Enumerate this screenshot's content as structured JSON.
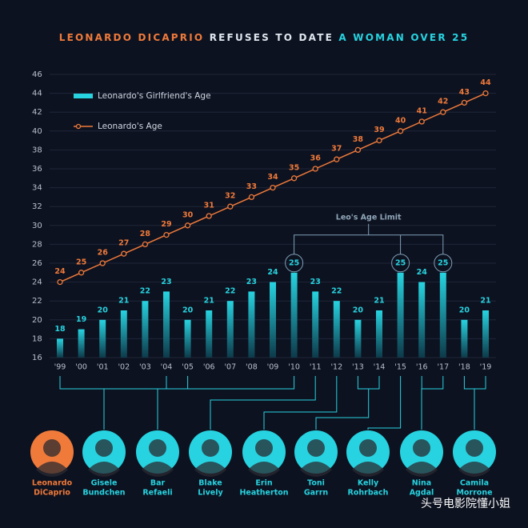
{
  "chart_data": {
    "type": "bar-line",
    "title_parts": [
      {
        "text": "LEONARDO DICAPRIO",
        "color": "#f07a3a"
      },
      {
        "text": "REFUSES TO DATE",
        "color": "#dfe6ee"
      },
      {
        "text": "A WOMAN OVER 25",
        "color": "#27d3e0"
      }
    ],
    "categories": [
      "'99",
      "'00",
      "'01",
      "'02",
      "'03",
      "'04",
      "'05",
      "'06",
      "'07",
      "'08",
      "'09",
      "'10",
      "'11",
      "'12",
      "'13",
      "'14",
      "'15",
      "'16",
      "'17",
      "'18",
      "'19"
    ],
    "series": [
      {
        "name": "Leonardo's Girlfriend's Age",
        "type": "bar",
        "color": "#27d3e0",
        "values": [
          18,
          19,
          20,
          21,
          22,
          23,
          20,
          21,
          22,
          23,
          24,
          25,
          23,
          22,
          20,
          21,
          25,
          24,
          25,
          20,
          21
        ]
      },
      {
        "name": "Leonardo's Age",
        "type": "line",
        "color": "#f07a3a",
        "values": [
          24,
          25,
          26,
          27,
          28,
          29,
          30,
          31,
          32,
          33,
          34,
          35,
          36,
          37,
          38,
          39,
          40,
          41,
          42,
          43,
          44
        ]
      }
    ],
    "ylim": [
      16,
      46
    ],
    "yticks": [
      16,
      18,
      20,
      22,
      24,
      26,
      28,
      30,
      32,
      34,
      36,
      38,
      40,
      42,
      44,
      46
    ],
    "grid": true,
    "annotation": "Leo's Age Limit",
    "people": [
      {
        "name": [
          "Leonardo",
          "DiCaprio"
        ],
        "color": "#f07a3a"
      },
      {
        "name": [
          "Gisele",
          "Bundchen"
        ],
        "color": "#27d3e0"
      },
      {
        "name": [
          "Bar",
          "Refaeli"
        ],
        "color": "#27d3e0"
      },
      {
        "name": [
          "Blake",
          "Lively"
        ],
        "color": "#27d3e0"
      },
      {
        "name": [
          "Erin",
          "Heatherton"
        ],
        "color": "#27d3e0"
      },
      {
        "name": [
          "Toni",
          "Garrn"
        ],
        "color": "#27d3e0"
      },
      {
        "name": [
          "Kelly",
          "Rohrbach"
        ],
        "color": "#27d3e0"
      },
      {
        "name": [
          "Nina",
          "Agdal"
        ],
        "color": "#27d3e0"
      },
      {
        "name": [
          "Camila",
          "Morrone"
        ],
        "color": "#27d3e0"
      }
    ],
    "watermark": "头号电影院懂小姐"
  }
}
